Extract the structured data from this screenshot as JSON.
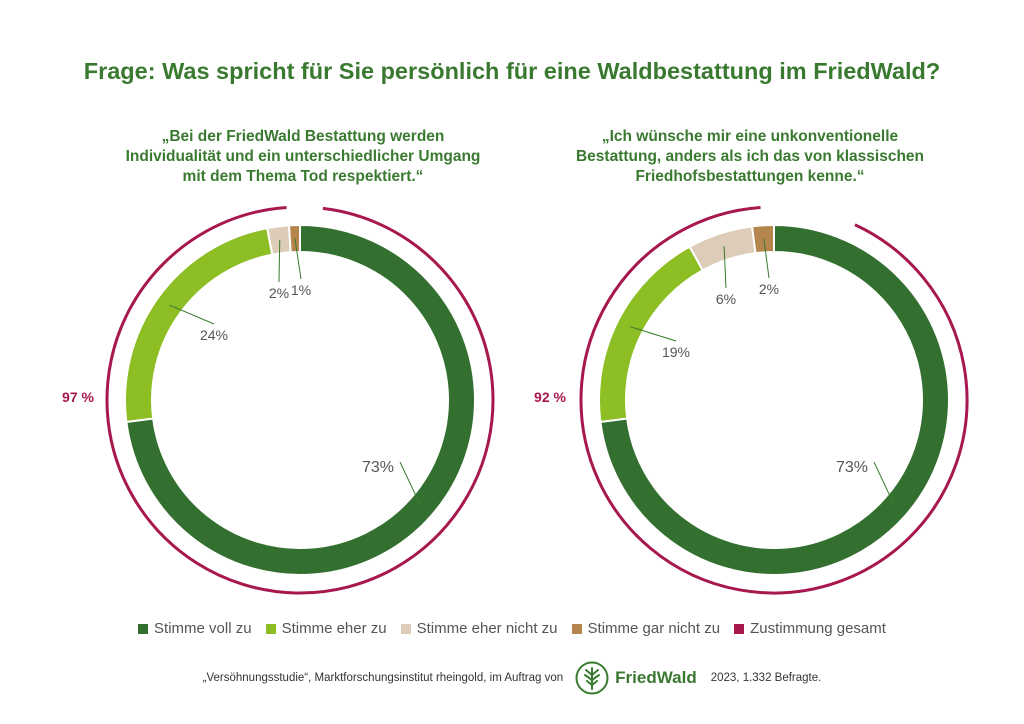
{
  "title": "Frage: Was spricht für Sie persönlich für eine Waldbestattung im FriedWald?",
  "colors": {
    "title_green": "#3a7a30",
    "Stimme voll zu": "#337030",
    "Stimme eher zu": "#8dbe23",
    "Stimme eher nicht zu": "#dcccb8",
    "Stimme gar nicht zu": "#b5854e",
    "Zustimmung gesamt": "#a7184f"
  },
  "chart_data": [
    {
      "type": "pie",
      "subtitle_lines": [
        "„Bei der FriedWald Bestattung werden",
        "Individualität und ein unterschiedlicher Umgang",
        "mit dem Thema Tod respektiert.“"
      ],
      "categories": [
        "Stimme voll zu",
        "Stimme eher zu",
        "Stimme eher nicht zu",
        "Stimme gar nicht zu"
      ],
      "values": [
        73,
        24,
        2,
        1
      ],
      "labels": [
        "73%",
        "24%",
        "2%",
        "1%"
      ],
      "total": {
        "label": "97 %",
        "value": 97
      }
    },
    {
      "type": "pie",
      "subtitle_lines": [
        "„Ich wünsche mir eine unkonventionelle",
        "Bestattung, anders als ich das von klassischen",
        "Friedhofsbestattungen kenne.“"
      ],
      "categories": [
        "Stimme voll zu",
        "Stimme eher zu",
        "Stimme eher nicht zu",
        "Stimme gar nicht zu"
      ],
      "values": [
        73,
        19,
        6,
        2
      ],
      "labels": [
        "73%",
        "19%",
        "6%",
        "2%"
      ],
      "total": {
        "label": "92 %",
        "value": 92
      }
    }
  ],
  "legend": [
    "Stimme voll zu",
    "Stimme eher zu",
    "Stimme eher nicht zu",
    "Stimme gar nicht zu",
    "Zustimmung gesamt"
  ],
  "footer": {
    "source": "„Versöhnungsstudie“, Marktforschungsinstitut rheingold, im Auftrag von",
    "logo_text": "FriedWald",
    "sample": "2023, 1.332 Befragte."
  }
}
